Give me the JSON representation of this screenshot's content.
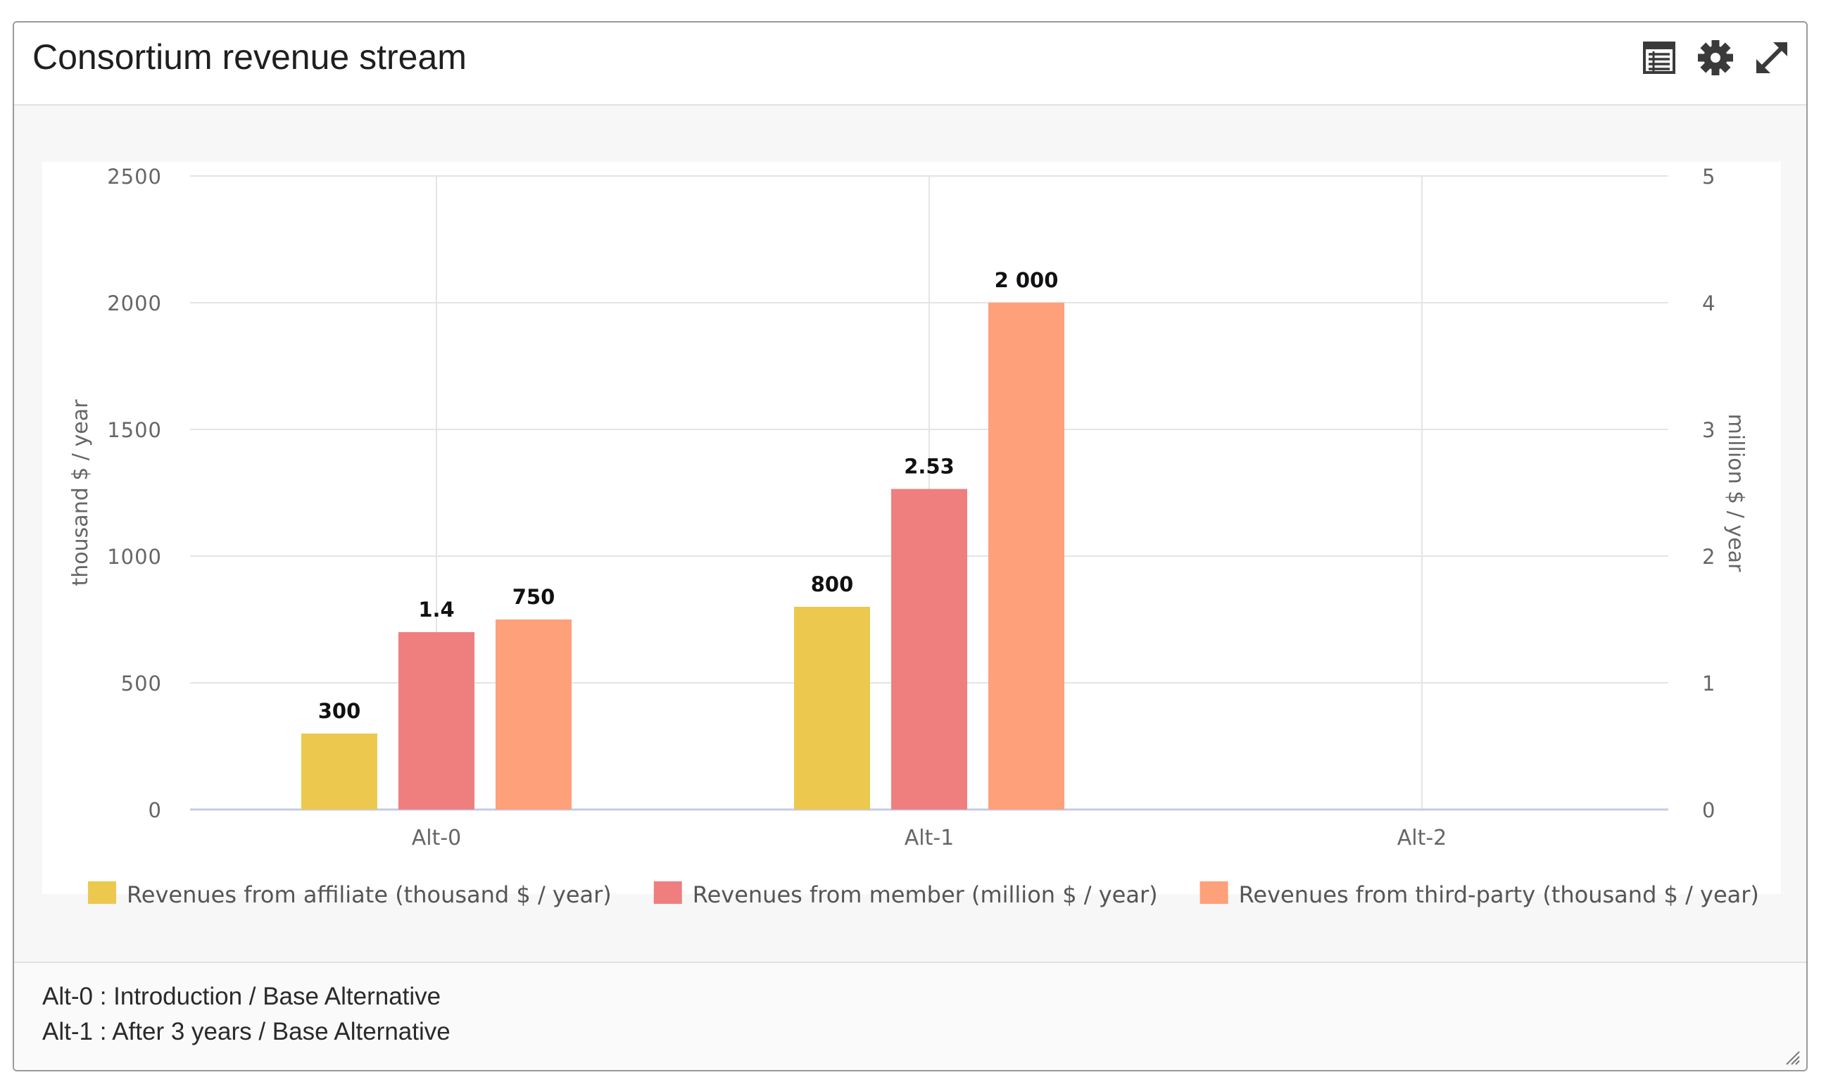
{
  "widget": {
    "title": "Consortium revenue stream",
    "icons": [
      "table-icon",
      "gear-icon",
      "expand-icon"
    ]
  },
  "chart_data": {
    "type": "bar",
    "categories": [
      "Alt-0",
      "Alt-1",
      "Alt-2"
    ],
    "y_left": {
      "label": "thousand $ / year",
      "range": [
        0,
        2500
      ],
      "ticks": [
        "0",
        "500",
        "1000",
        "1500",
        "2000",
        "2500"
      ]
    },
    "y_right": {
      "label": "million $ / year",
      "range": [
        0,
        5
      ],
      "ticks": [
        "0",
        "1",
        "2",
        "3",
        "4",
        "5"
      ]
    },
    "series": [
      {
        "name": "Revenues from affiliate (thousand $ / year)",
        "axis": "left",
        "color": "#ecc94e",
        "values": [
          300,
          800,
          null
        ],
        "labels": [
          "300",
          "800",
          ""
        ]
      },
      {
        "name": "Revenues from member (million $ / year)",
        "axis": "right",
        "color": "#ef7f7f",
        "values": [
          1.4,
          2.53,
          null
        ],
        "labels": [
          "1.4",
          "2.53",
          ""
        ]
      },
      {
        "name": "Revenues from third-party (thousand $ / year)",
        "axis": "left",
        "color": "#fea07a",
        "values": [
          750,
          2000,
          null
        ],
        "labels": [
          "750",
          "2 000",
          ""
        ]
      }
    ],
    "grid": true,
    "legend": "bottom"
  },
  "footer": {
    "notes": [
      "Alt-0 : Introduction / Base Alternative",
      "Alt-1 : After 3 years / Base Alternative"
    ]
  }
}
